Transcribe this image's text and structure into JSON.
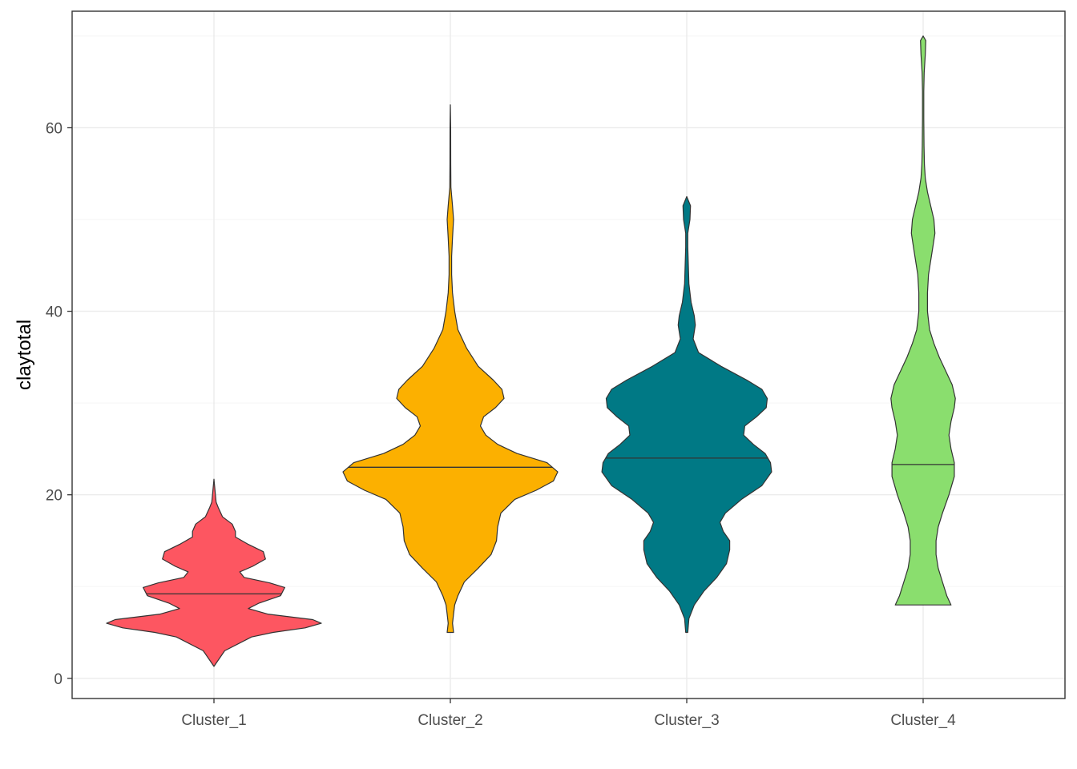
{
  "chart_data": {
    "type": "violin",
    "ylabel": "claytotal",
    "xlabel": "",
    "ylim": [
      -2.2,
      72.7
    ],
    "yticks": [
      0,
      20,
      40,
      60
    ],
    "grid": true,
    "legend": "none",
    "colors": {
      "panel_border": "#333333",
      "grid_major": "#ebebeb",
      "grid_minor": "#f5f5f5",
      "outline": "#333333"
    },
    "categories": [
      "Cluster_1",
      "Cluster_2",
      "Cluster_3",
      "Cluster_4"
    ],
    "series": [
      {
        "category": "Cluster_1",
        "fill": "#fd5661",
        "median": 9.2,
        "min": 1.3,
        "max": 21.7,
        "density_profile": [
          [
            1.3,
            0.0
          ],
          [
            3.0,
            0.1
          ],
          [
            4.5,
            0.35
          ],
          [
            5.0,
            0.55
          ],
          [
            5.5,
            0.85
          ],
          [
            6.0,
            1.0
          ],
          [
            6.4,
            0.92
          ],
          [
            7.0,
            0.5
          ],
          [
            7.6,
            0.32
          ],
          [
            8.2,
            0.42
          ],
          [
            9.0,
            0.62
          ],
          [
            9.9,
            0.66
          ],
          [
            10.4,
            0.52
          ],
          [
            11.0,
            0.28
          ],
          [
            11.6,
            0.24
          ],
          [
            12.2,
            0.36
          ],
          [
            13.0,
            0.48
          ],
          [
            13.8,
            0.46
          ],
          [
            14.6,
            0.32
          ],
          [
            15.4,
            0.2
          ],
          [
            16.0,
            0.2
          ],
          [
            16.8,
            0.17
          ],
          [
            17.6,
            0.08
          ],
          [
            18.6,
            0.04
          ],
          [
            19.2,
            0.02
          ],
          [
            20.5,
            0.01
          ],
          [
            21.7,
            0.0
          ]
        ]
      },
      {
        "category": "Cluster_2",
        "fill": "#fcb000",
        "median": 23.0,
        "min": 5.0,
        "max": 62.5,
        "density_profile": [
          [
            5.0,
            0.03
          ],
          [
            6.0,
            0.02
          ],
          [
            7.0,
            0.03
          ],
          [
            8.0,
            0.04
          ],
          [
            9.0,
            0.07
          ],
          [
            10.5,
            0.13
          ],
          [
            12.0,
            0.26
          ],
          [
            13.5,
            0.38
          ],
          [
            15.0,
            0.43
          ],
          [
            16.5,
            0.44
          ],
          [
            18.0,
            0.47
          ],
          [
            19.5,
            0.6
          ],
          [
            20.5,
            0.8
          ],
          [
            21.5,
            0.96
          ],
          [
            22.5,
            1.0
          ],
          [
            23.5,
            0.9
          ],
          [
            24.5,
            0.62
          ],
          [
            25.5,
            0.44
          ],
          [
            26.5,
            0.33
          ],
          [
            27.5,
            0.28
          ],
          [
            28.5,
            0.31
          ],
          [
            29.5,
            0.42
          ],
          [
            30.5,
            0.5
          ],
          [
            31.5,
            0.48
          ],
          [
            32.5,
            0.4
          ],
          [
            34.0,
            0.26
          ],
          [
            36.0,
            0.15
          ],
          [
            38.0,
            0.07
          ],
          [
            40.0,
            0.04
          ],
          [
            42.0,
            0.02
          ],
          [
            44.0,
            0.012
          ],
          [
            46.0,
            0.012
          ],
          [
            48.0,
            0.02
          ],
          [
            50.0,
            0.03
          ],
          [
            51.5,
            0.02
          ],
          [
            53.5,
            0.005
          ],
          [
            56.0,
            0.004
          ],
          [
            60.0,
            0.003
          ],
          [
            62.5,
            0.0
          ]
        ]
      },
      {
        "category": "Cluster_3",
        "fill": "#007985",
        "median": 24.0,
        "min": 5.0,
        "max": 52.5,
        "density_profile": [
          [
            5.0,
            0.01
          ],
          [
            6.5,
            0.02
          ],
          [
            8.0,
            0.07
          ],
          [
            9.5,
            0.16
          ],
          [
            11.0,
            0.28
          ],
          [
            12.5,
            0.37
          ],
          [
            14.0,
            0.4
          ],
          [
            15.0,
            0.4
          ],
          [
            16.0,
            0.34
          ],
          [
            17.0,
            0.31
          ],
          [
            18.0,
            0.36
          ],
          [
            19.5,
            0.51
          ],
          [
            21.0,
            0.7
          ],
          [
            22.5,
            0.79
          ],
          [
            23.5,
            0.78
          ],
          [
            24.5,
            0.73
          ],
          [
            25.5,
            0.62
          ],
          [
            26.5,
            0.53
          ],
          [
            27.5,
            0.54
          ],
          [
            28.5,
            0.65
          ],
          [
            29.5,
            0.74
          ],
          [
            30.5,
            0.75
          ],
          [
            31.5,
            0.7
          ],
          [
            32.5,
            0.56
          ],
          [
            34.0,
            0.32
          ],
          [
            35.5,
            0.11
          ],
          [
            37.0,
            0.06
          ],
          [
            38.5,
            0.08
          ],
          [
            39.5,
            0.07
          ],
          [
            41.0,
            0.04
          ],
          [
            43.0,
            0.02
          ],
          [
            45.0,
            0.015
          ],
          [
            47.0,
            0.01
          ],
          [
            48.5,
            0.01
          ],
          [
            50.0,
            0.03
          ],
          [
            51.5,
            0.035
          ],
          [
            52.5,
            0.0
          ]
        ]
      },
      {
        "category": "Cluster_4",
        "fill": "#8ade6e",
        "median": 23.3,
        "min": 8.0,
        "max": 70.0,
        "density_profile": [
          [
            8.0,
            0.26
          ],
          [
            9.0,
            0.22
          ],
          [
            10.5,
            0.18
          ],
          [
            12.0,
            0.14
          ],
          [
            13.5,
            0.12
          ],
          [
            15.0,
            0.12
          ],
          [
            16.5,
            0.14
          ],
          [
            18.0,
            0.18
          ],
          [
            20.0,
            0.24
          ],
          [
            22.0,
            0.29
          ],
          [
            23.5,
            0.29
          ],
          [
            25.0,
            0.26
          ],
          [
            26.5,
            0.24
          ],
          [
            28.0,
            0.26
          ],
          [
            29.5,
            0.29
          ],
          [
            30.5,
            0.3
          ],
          [
            32.0,
            0.27
          ],
          [
            33.5,
            0.21
          ],
          [
            35.0,
            0.15
          ],
          [
            36.5,
            0.1
          ],
          [
            38.0,
            0.06
          ],
          [
            40.0,
            0.04
          ],
          [
            42.0,
            0.04
          ],
          [
            44.0,
            0.05
          ],
          [
            45.5,
            0.07
          ],
          [
            47.0,
            0.09
          ],
          [
            48.5,
            0.11
          ],
          [
            50.0,
            0.1
          ],
          [
            51.5,
            0.07
          ],
          [
            53.0,
            0.04
          ],
          [
            54.5,
            0.02
          ],
          [
            56.0,
            0.012
          ],
          [
            58.0,
            0.008
          ],
          [
            61.0,
            0.006
          ],
          [
            64.0,
            0.006
          ],
          [
            66.0,
            0.01
          ],
          [
            68.0,
            0.02
          ],
          [
            69.5,
            0.025
          ],
          [
            70.0,
            0.0
          ]
        ]
      }
    ]
  }
}
